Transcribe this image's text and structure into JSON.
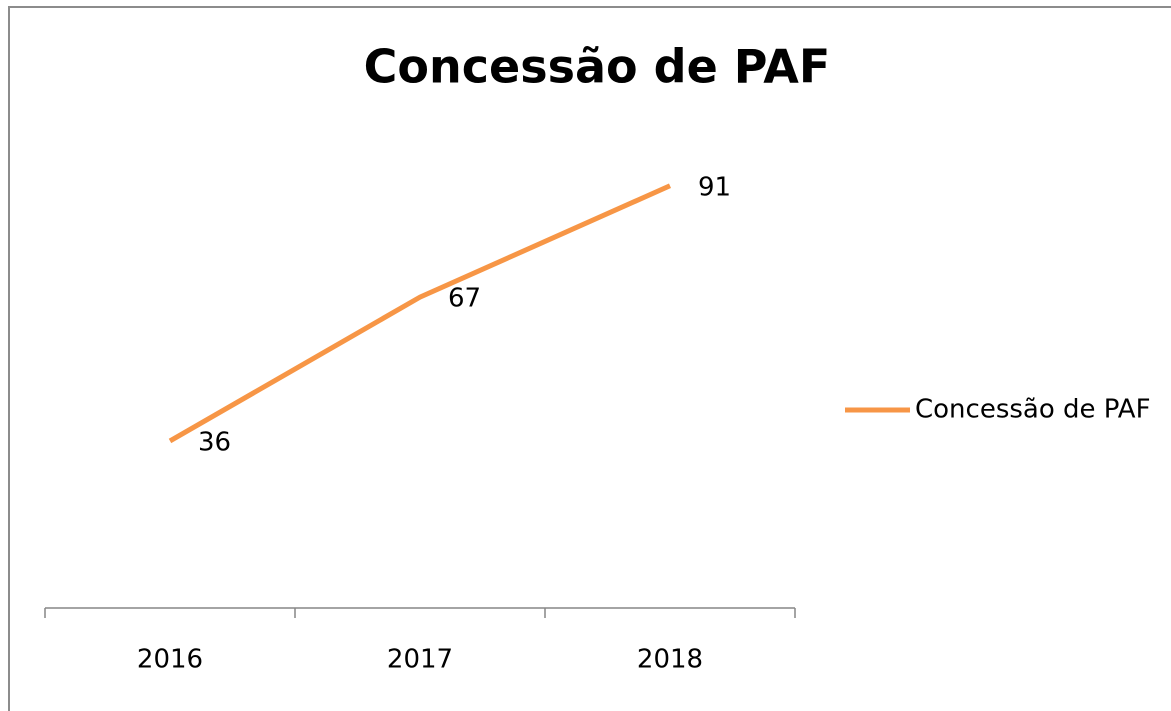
{
  "chart_data": {
    "type": "line",
    "title": "Concessão de PAF",
    "categories": [
      "2016",
      "2017",
      "2018"
    ],
    "series": [
      {
        "name": "Concessão de PAF",
        "color": "#f79646",
        "values": [
          36,
          67,
          91
        ]
      }
    ],
    "ylim": [
      0,
      100
    ],
    "legend": "right"
  }
}
